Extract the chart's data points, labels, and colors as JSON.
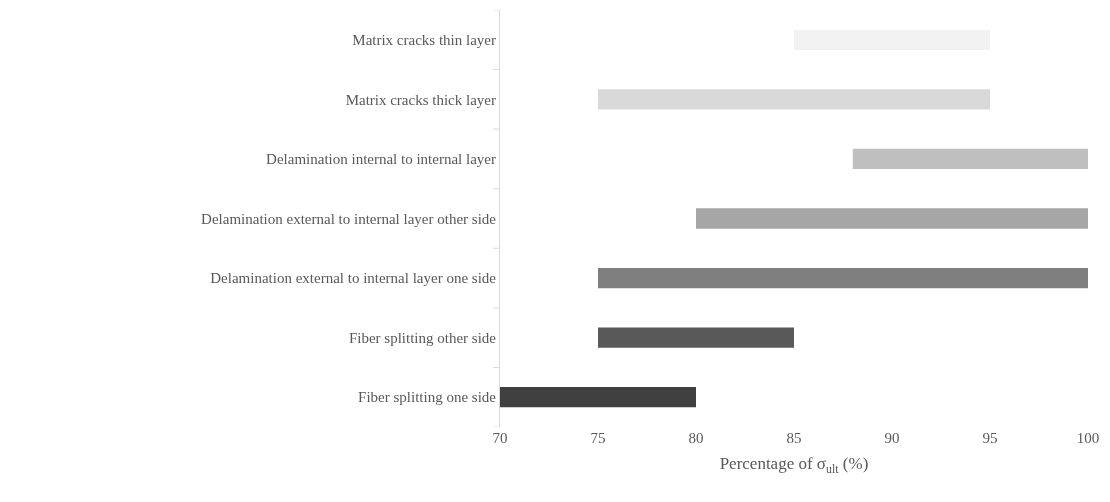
{
  "chart_data": {
    "type": "bar",
    "orientation": "horizontal",
    "xlabel": "Percentage of σ$_{ult}$ (%)",
    "categories": [
      "Matrix cracks thin layer",
      "Matrix cracks thick layer",
      "Delamination internal to internal layer",
      "Delamination external to internal layer other side",
      "Delamination external to internal layer one side",
      "Fiber splitting other side",
      "Fiber splitting one side"
    ],
    "base": [
      85,
      75,
      88,
      80,
      75,
      75,
      70
    ],
    "values": [
      10,
      20,
      12,
      20,
      25,
      10,
      10
    ],
    "colors": [
      "#f2f2f2",
      "#d9d9d9",
      "#bfbfbf",
      "#a6a6a6",
      "#7f7f7f",
      "#595959",
      "#404040"
    ],
    "xlim": [
      70,
      100
    ],
    "xticks": [
      70,
      75,
      80,
      85,
      90,
      95,
      100
    ],
    "grid": false
  }
}
